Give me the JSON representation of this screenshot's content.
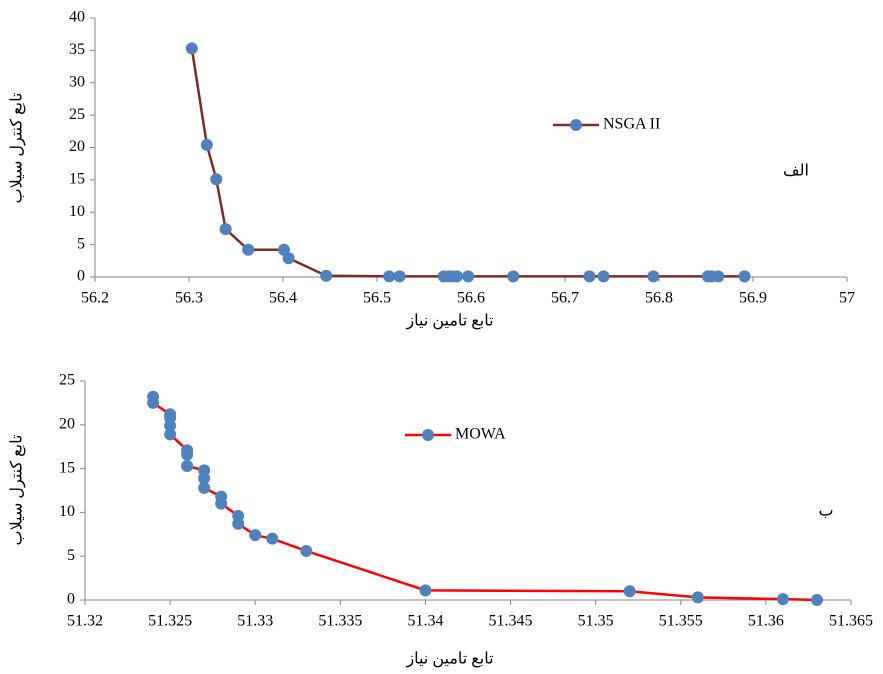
{
  "chart_data": [
    {
      "type": "line",
      "x_label": "تابع تامین نیاز",
      "y_label": "تابع کنترل سیلاب",
      "annotation": "الف",
      "xlim": [
        56.2,
        57
      ],
      "xticks": [
        56.2,
        56.3,
        56.4,
        56.5,
        56.6,
        56.7,
        56.8,
        56.9,
        57
      ],
      "ylim": [
        0,
        40
      ],
      "yticks": [
        0,
        5,
        10,
        15,
        20,
        25,
        30,
        35,
        40
      ],
      "series": [
        {
          "name": "NSGA II",
          "color": "#7b2a2a",
          "marker_color": "#4f81bd",
          "x": [
            56.303,
            56.319,
            56.329,
            56.339,
            56.363,
            56.401,
            56.406,
            56.446,
            56.513,
            56.524,
            56.571,
            56.576,
            56.58,
            56.585,
            56.597,
            56.645,
            56.726,
            56.741,
            56.794,
            56.852,
            56.856,
            56.863,
            56.891
          ],
          "values": [
            35.3,
            20.4,
            15.1,
            7.4,
            4.2,
            4.2,
            2.9,
            0.2,
            0.1,
            0.1,
            0.1,
            0.1,
            0.1,
            0.1,
            0.1,
            0.1,
            0.1,
            0.1,
            0.1,
            0.1,
            0.1,
            0.1,
            0.1
          ]
        }
      ]
    },
    {
      "type": "line",
      "x_label": "تابع تامین نیاز",
      "y_label": "تابع کنترل سیلاب",
      "annotation": "ب",
      "xlim": [
        51.32,
        51.365
      ],
      "xticks": [
        51.32,
        51.325,
        51.33,
        51.335,
        51.34,
        51.345,
        51.35,
        51.355,
        51.36,
        51.365
      ],
      "ylim": [
        0,
        25
      ],
      "yticks": [
        0,
        5,
        10,
        15,
        20,
        25
      ],
      "series": [
        {
          "name": "MOWA",
          "color": "#ff0000",
          "marker_color": "#4f81bd",
          "x": [
            51.324,
            51.324,
            51.325,
            51.325,
            51.325,
            51.325,
            51.326,
            51.326,
            51.326,
            51.327,
            51.327,
            51.327,
            51.328,
            51.328,
            51.329,
            51.329,
            51.33,
            51.331,
            51.333,
            51.34,
            51.352,
            51.356,
            51.361,
            51.363
          ],
          "values": [
            23.2,
            22.5,
            21.2,
            20.8,
            19.9,
            18.9,
            17.1,
            16.6,
            15.3,
            14.8,
            13.9,
            12.8,
            11.8,
            11.0,
            9.6,
            8.7,
            7.4,
            7.0,
            5.6,
            1.1,
            1.0,
            0.3,
            0.1,
            0
          ]
        }
      ]
    }
  ]
}
